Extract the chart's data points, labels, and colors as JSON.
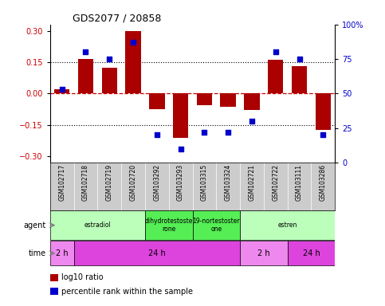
{
  "title": "GDS2077 / 20858",
  "samples": [
    "GSM102717",
    "GSM102718",
    "GSM102719",
    "GSM102720",
    "GSM103292",
    "GSM103293",
    "GSM103315",
    "GSM103324",
    "GSM102721",
    "GSM102722",
    "GSM103111",
    "GSM103286"
  ],
  "log10_ratio": [
    0.02,
    0.165,
    0.125,
    0.3,
    -0.075,
    -0.21,
    -0.055,
    -0.065,
    -0.08,
    0.16,
    0.13,
    -0.175
  ],
  "percentile": [
    53,
    80,
    75,
    87,
    20,
    10,
    22,
    22,
    30,
    80,
    75,
    20
  ],
  "bar_color": "#aa0000",
  "dot_color": "#0000cc",
  "ylim": [
    -0.33,
    0.33
  ],
  "y2lim": [
    0,
    100
  ],
  "yticks": [
    -0.3,
    -0.15,
    0,
    0.15,
    0.3
  ],
  "y2ticks": [
    0,
    25,
    50,
    75,
    100
  ],
  "hline_y": [
    0.15,
    -0.15
  ],
  "zero_line_color": "#cc0000",
  "agent_row": [
    {
      "label": "estradiol",
      "start": 0,
      "end": 4,
      "color": "#bbffbb"
    },
    {
      "label": "dihydrotestoste\nrone",
      "start": 4,
      "end": 6,
      "color": "#55ee55"
    },
    {
      "label": "19-nortestoster\none",
      "start": 6,
      "end": 8,
      "color": "#55ee55"
    },
    {
      "label": "estren",
      "start": 8,
      "end": 12,
      "color": "#bbffbb"
    }
  ],
  "time_row": [
    {
      "label": "2 h",
      "start": 0,
      "end": 1,
      "color": "#ee88ee"
    },
    {
      "label": "24 h",
      "start": 1,
      "end": 8,
      "color": "#dd44dd"
    },
    {
      "label": "2 h",
      "start": 8,
      "end": 10,
      "color": "#ee88ee"
    },
    {
      "label": "24 h",
      "start": 10,
      "end": 12,
      "color": "#dd44dd"
    }
  ],
  "legend_items": [
    {
      "label": "log10 ratio",
      "color": "#aa0000"
    },
    {
      "label": "percentile rank within the sample",
      "color": "#0000cc"
    }
  ],
  "tick_label_color_left": "#cc0000",
  "tick_label_color_right": "#0000cc",
  "sample_label_bg": "#cccccc",
  "background_color": "#ffffff"
}
